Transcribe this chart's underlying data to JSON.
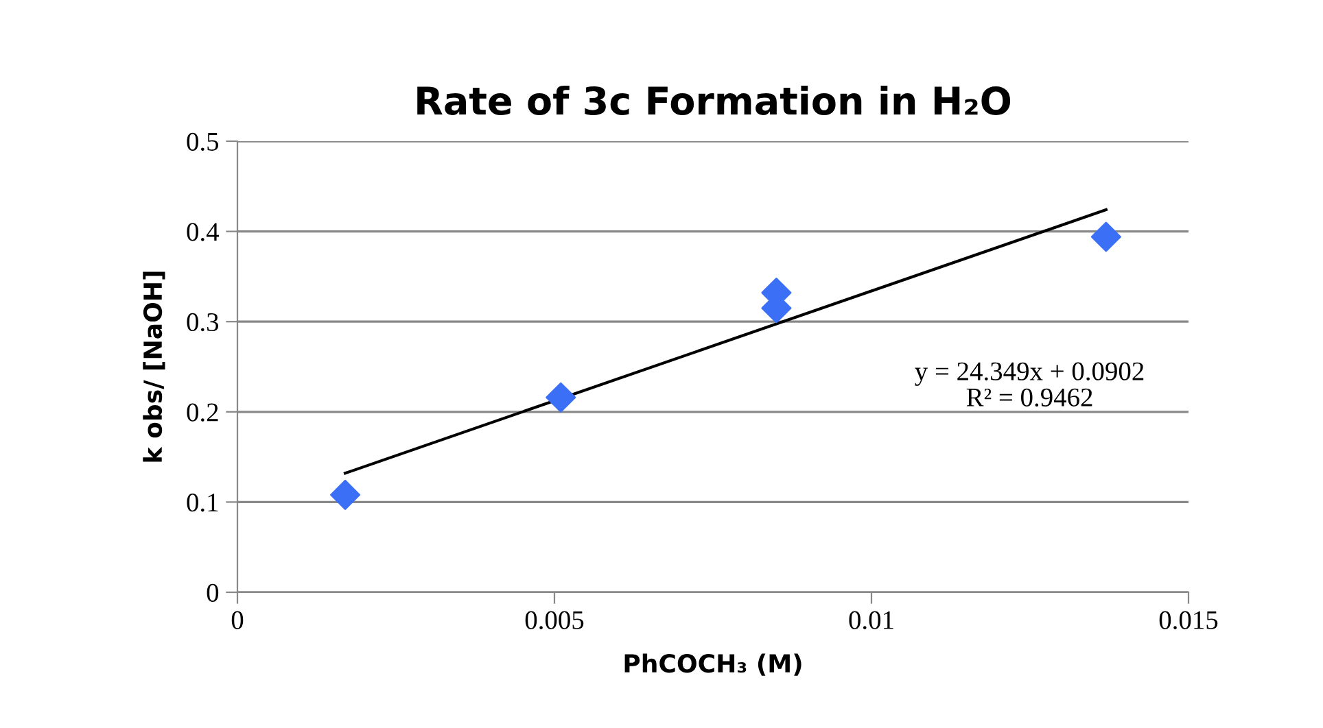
{
  "chart_data": {
    "type": "scatter",
    "title": "Rate of 3c Formation in H₂O",
    "xlabel": "PhCOCH₃ (M)",
    "ylabel": "k obs/ [NaOH]",
    "series": [
      {
        "color": "#3b6ff5",
        "marker": "diamond",
        "x": [
          0.0017,
          0.0051,
          0.0085,
          0.0085,
          0.0137
        ],
        "values": [
          0.108,
          0.216,
          0.315,
          0.332,
          0.394
        ]
      },
      {
        "type": "line",
        "color": "#000000",
        "marker": "none",
        "x": [
          0.0017,
          0.0137
        ],
        "values": [
          0.132,
          0.424
        ]
      }
    ],
    "annotations": [
      "y = 24.349x + 0.0902\nR² = 0.9462"
    ],
    "xlim": [
      0,
      0.015
    ],
    "xticks": [
      0,
      0.005,
      0.01,
      0.015
    ],
    "ylim": [
      0,
      0.5
    ],
    "yticks": [
      0,
      0.1,
      0.2,
      0.3,
      0.4,
      0.5
    ],
    "grid": "y",
    "legend": false
  }
}
